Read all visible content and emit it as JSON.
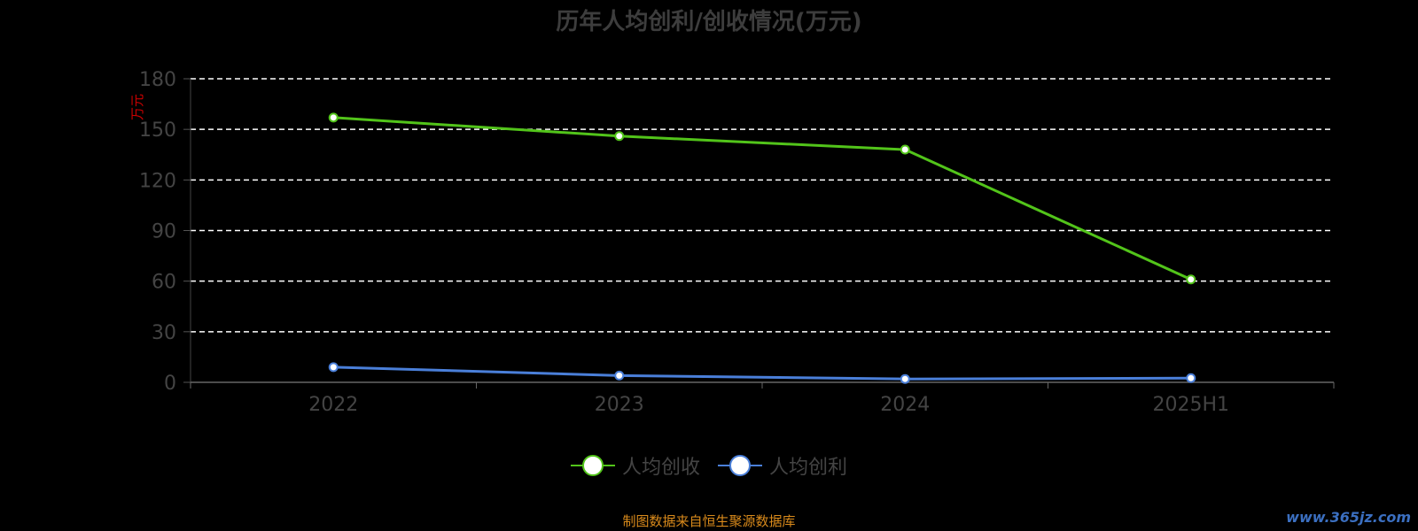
{
  "chart_data": {
    "type": "line",
    "title": "历年人均创利/创收情况(万元)",
    "ylabel": "万元",
    "categories": [
      "2022",
      "2023",
      "2024",
      "2025H1"
    ],
    "ylim": [
      0,
      180
    ],
    "yticks": [
      0,
      30,
      60,
      90,
      120,
      150,
      180
    ],
    "grid": true,
    "legend_position": "bottom",
    "series": [
      {
        "name": "人均创收",
        "values": [
          157,
          146,
          138,
          61
        ],
        "color": "#52c41a"
      },
      {
        "name": "人均创利",
        "values": [
          9,
          4,
          2,
          2.5
        ],
        "color": "#4a7fd9"
      }
    ]
  },
  "footer": {
    "source": "制图数据来自恒生聚源数据库",
    "watermark": "www.365jz.com"
  }
}
